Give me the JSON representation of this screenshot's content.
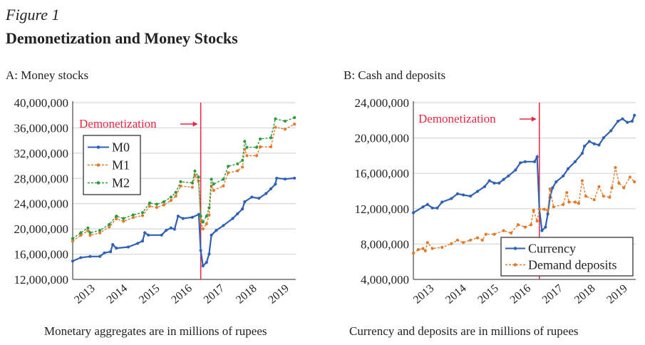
{
  "figure_label": "Figure 1",
  "figure_title": "Demonetization and Money Stocks",
  "colors": {
    "m0": "#2f62b4",
    "m1": "#e07b2a",
    "m2": "#2e9a3e",
    "currency": "#2f62b4",
    "deposits": "#e07b2a",
    "event": "#e8263f",
    "grid": "#d6d6d6"
  },
  "chart_data": [
    {
      "type": "line",
      "title": "A: Money stocks",
      "caption": "Monetary aggregates are in millions of rupees",
      "xlim": [
        2012.9,
        2019.8
      ],
      "ylim": [
        12000000,
        40000000
      ],
      "grid": true,
      "legend_placement": "upper-left",
      "x_tick_labels": [
        "2013",
        "2014",
        "2015",
        "2016",
        "2017",
        "2018",
        "2019"
      ],
      "y_tick_labels": [
        "12,000,000",
        "16,000,000",
        "20,000,000",
        "24,000,000",
        "28,000,000",
        "32,000,000",
        "36,000,000",
        "40,000,000"
      ],
      "annotation": {
        "text": "Demonetization",
        "x": 2016.86
      },
      "unit_millions": true,
      "series": [
        {
          "name": "M0",
          "style": "solid",
          "points": [
            [
              2012.9,
              14.9
            ],
            [
              2013.15,
              15.45
            ],
            [
              2013.44,
              15.64
            ],
            [
              2013.74,
              15.64
            ],
            [
              2013.88,
              16.2
            ],
            [
              2014.07,
              16.39
            ],
            [
              2014.14,
              17.52
            ],
            [
              2014.25,
              16.95
            ],
            [
              2014.62,
              17.14
            ],
            [
              2014.91,
              17.71
            ],
            [
              2015.06,
              18.08
            ],
            [
              2015.13,
              19.4
            ],
            [
              2015.24,
              19.02
            ],
            [
              2015.65,
              19.02
            ],
            [
              2015.79,
              19.77
            ],
            [
              2015.94,
              20.15
            ],
            [
              2016.05,
              19.96
            ],
            [
              2016.16,
              22.03
            ],
            [
              2016.31,
              21.65
            ],
            [
              2016.6,
              21.84
            ],
            [
              2016.8,
              22.3
            ],
            [
              2016.86,
              16.58
            ],
            [
              2016.93,
              14.14
            ],
            [
              2017.04,
              14.7
            ],
            [
              2017.12,
              16.02
            ],
            [
              2017.19,
              19.02
            ],
            [
              2017.34,
              19.77
            ],
            [
              2017.56,
              20.53
            ],
            [
              2017.85,
              21.65
            ],
            [
              2018.0,
              22.41
            ],
            [
              2018.15,
              23.16
            ],
            [
              2018.22,
              24.29
            ],
            [
              2018.44,
              25.04
            ],
            [
              2018.66,
              24.85
            ],
            [
              2018.88,
              25.6
            ],
            [
              2019.03,
              26.35
            ],
            [
              2019.17,
              27.1
            ],
            [
              2019.21,
              28.04
            ],
            [
              2019.47,
              27.9
            ],
            [
              2019.76,
              28.04
            ]
          ]
        },
        {
          "name": "M1",
          "style": "dashed",
          "points": [
            [
              2012.9,
              18.06
            ],
            [
              2013.15,
              19.0
            ],
            [
              2013.37,
              19.7
            ],
            [
              2013.44,
              19.0
            ],
            [
              2013.74,
              19.37
            ],
            [
              2014.03,
              20.31
            ],
            [
              2014.25,
              21.6
            ],
            [
              2014.47,
              21.2
            ],
            [
              2014.77,
              21.8
            ],
            [
              2015.06,
              22.1
            ],
            [
              2015.28,
              23.6
            ],
            [
              2015.5,
              23.4
            ],
            [
              2015.72,
              23.8
            ],
            [
              2015.94,
              24.5
            ],
            [
              2016.09,
              25.2
            ],
            [
              2016.24,
              26.8
            ],
            [
              2016.6,
              26.6
            ],
            [
              2016.68,
              28.5
            ],
            [
              2016.79,
              27.6
            ],
            [
              2016.86,
              21.2
            ],
            [
              2016.93,
              20.0
            ],
            [
              2017.04,
              20.8
            ],
            [
              2017.12,
              22.2
            ],
            [
              2017.19,
              26.8
            ],
            [
              2017.26,
              26.1
            ],
            [
              2017.56,
              26.8
            ],
            [
              2017.71,
              28.9
            ],
            [
              2018.0,
              29.2
            ],
            [
              2018.15,
              29.8
            ],
            [
              2018.22,
              32.6
            ],
            [
              2018.29,
              31.6
            ],
            [
              2018.59,
              31.6
            ],
            [
              2018.7,
              33.0
            ],
            [
              2019.03,
              33.0
            ],
            [
              2019.17,
              36.1
            ],
            [
              2019.47,
              35.8
            ],
            [
              2019.76,
              36.6
            ]
          ]
        },
        {
          "name": "M2",
          "style": "dashed",
          "points": [
            [
              2012.9,
              18.46
            ],
            [
              2013.15,
              19.4
            ],
            [
              2013.37,
              20.15
            ],
            [
              2013.44,
              19.4
            ],
            [
              2013.74,
              19.77
            ],
            [
              2014.03,
              20.71
            ],
            [
              2014.25,
              22.03
            ],
            [
              2014.47,
              21.65
            ],
            [
              2014.77,
              22.22
            ],
            [
              2015.06,
              22.59
            ],
            [
              2015.28,
              24.1
            ],
            [
              2015.5,
              23.91
            ],
            [
              2015.72,
              24.29
            ],
            [
              2015.94,
              25.04
            ],
            [
              2016.09,
              25.79
            ],
            [
              2016.24,
              27.48
            ],
            [
              2016.6,
              27.29
            ],
            [
              2016.68,
              29.17
            ],
            [
              2016.79,
              28.23
            ],
            [
              2016.86,
              22.03
            ],
            [
              2016.93,
              21.09
            ],
            [
              2017.04,
              22.03
            ],
            [
              2017.12,
              23.35
            ],
            [
              2017.19,
              27.86
            ],
            [
              2017.26,
              27.11
            ],
            [
              2017.56,
              27.86
            ],
            [
              2017.71,
              29.92
            ],
            [
              2018.0,
              30.3
            ],
            [
              2018.15,
              30.86
            ],
            [
              2018.22,
              33.87
            ],
            [
              2018.29,
              32.93
            ],
            [
              2018.59,
              32.93
            ],
            [
              2018.7,
              34.25
            ],
            [
              2019.03,
              34.44
            ],
            [
              2019.17,
              37.44
            ],
            [
              2019.47,
              37.07
            ],
            [
              2019.76,
              37.63
            ]
          ]
        }
      ]
    },
    {
      "type": "line",
      "title": "B: Cash and deposits",
      "caption": "Currency and deposits are in millions of rupees",
      "xlim": [
        2012.95,
        2019.85
      ],
      "ylim": [
        4000000,
        24000000
      ],
      "grid": true,
      "legend_placement": "lower-right",
      "x_tick_labels": [
        "2013",
        "2014",
        "2015",
        "2016",
        "2017",
        "2018",
        "2019"
      ],
      "y_tick_labels": [
        "4,000,000",
        "8,000,000",
        "12,000,000",
        "16,000,000",
        "20,000,000",
        "24,000,000"
      ],
      "annotation": {
        "text": "Demonetization",
        "x": 2016.86
      },
      "unit_millions": true,
      "series": [
        {
          "name": "Currency",
          "style": "solid",
          "points": [
            [
              2012.95,
              11.54
            ],
            [
              2013.25,
              12.21
            ],
            [
              2013.39,
              12.48
            ],
            [
              2013.54,
              12.08
            ],
            [
              2013.69,
              12.08
            ],
            [
              2013.84,
              12.75
            ],
            [
              2014.13,
              13.15
            ],
            [
              2014.32,
              13.69
            ],
            [
              2014.5,
              13.56
            ],
            [
              2014.72,
              13.42
            ],
            [
              2014.94,
              13.96
            ],
            [
              2015.16,
              14.5
            ],
            [
              2015.31,
              15.17
            ],
            [
              2015.46,
              14.9
            ],
            [
              2015.61,
              14.9
            ],
            [
              2015.75,
              15.31
            ],
            [
              2015.9,
              15.71
            ],
            [
              2016.12,
              16.38
            ],
            [
              2016.27,
              17.19
            ],
            [
              2016.42,
              17.32
            ],
            [
              2016.71,
              17.32
            ],
            [
              2016.79,
              17.86
            ],
            [
              2016.86,
              11.94
            ],
            [
              2016.94,
              9.52
            ],
            [
              2017.05,
              9.92
            ],
            [
              2017.12,
              11.4
            ],
            [
              2017.19,
              13.29
            ],
            [
              2017.27,
              14.36
            ],
            [
              2017.38,
              15.04
            ],
            [
              2017.6,
              15.71
            ],
            [
              2017.75,
              16.52
            ],
            [
              2017.97,
              17.32
            ],
            [
              2018.19,
              18.27
            ],
            [
              2018.26,
              19.07
            ],
            [
              2018.41,
              19.61
            ],
            [
              2018.56,
              19.34
            ],
            [
              2018.71,
              19.21
            ],
            [
              2018.85,
              20.02
            ],
            [
              2019.08,
              20.82
            ],
            [
              2019.3,
              21.9
            ],
            [
              2019.44,
              22.17
            ],
            [
              2019.59,
              21.77
            ],
            [
              2019.74,
              21.9
            ],
            [
              2019.81,
              22.57
            ]
          ]
        },
        {
          "name": "Demand deposits",
          "style": "dashed",
          "points": [
            [
              2012.95,
              6.96
            ],
            [
              2013.1,
              7.37
            ],
            [
              2013.25,
              7.5
            ],
            [
              2013.32,
              7.23
            ],
            [
              2013.39,
              8.17
            ],
            [
              2013.54,
              7.5
            ],
            [
              2013.84,
              7.63
            ],
            [
              2014.13,
              8.04
            ],
            [
              2014.32,
              8.44
            ],
            [
              2014.5,
              8.17
            ],
            [
              2014.72,
              8.44
            ],
            [
              2014.94,
              8.71
            ],
            [
              2015.09,
              8.44
            ],
            [
              2015.2,
              9.11
            ],
            [
              2015.46,
              9.11
            ],
            [
              2015.75,
              9.52
            ],
            [
              2015.98,
              9.25
            ],
            [
              2016.2,
              10.19
            ],
            [
              2016.42,
              9.92
            ],
            [
              2016.6,
              10.19
            ],
            [
              2016.68,
              11.81
            ],
            [
              2016.79,
              10.6
            ],
            [
              2016.86,
              11.94
            ],
            [
              2017.01,
              11.94
            ],
            [
              2017.12,
              11.81
            ],
            [
              2017.19,
              14.23
            ],
            [
              2017.3,
              12.21
            ],
            [
              2017.6,
              12.48
            ],
            [
              2017.71,
              13.82
            ],
            [
              2017.78,
              12.75
            ],
            [
              2017.97,
              12.75
            ],
            [
              2018.08,
              12.61
            ],
            [
              2018.19,
              15.17
            ],
            [
              2018.3,
              13.42
            ],
            [
              2018.56,
              13.02
            ],
            [
              2018.71,
              14.5
            ],
            [
              2018.85,
              13.42
            ],
            [
              2019.04,
              13.29
            ],
            [
              2019.11,
              14.36
            ],
            [
              2019.22,
              16.65
            ],
            [
              2019.33,
              14.9
            ],
            [
              2019.48,
              14.36
            ],
            [
              2019.67,
              15.57
            ],
            [
              2019.81,
              15.04
            ]
          ]
        }
      ]
    }
  ]
}
